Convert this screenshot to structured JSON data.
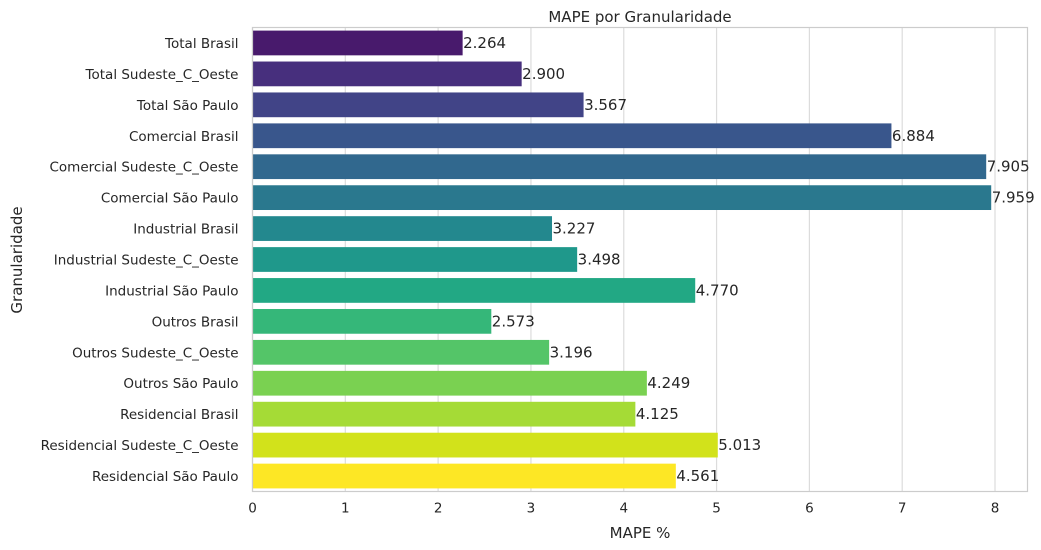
{
  "chart_data": {
    "type": "bar",
    "orientation": "horizontal",
    "title": "MAPE por Granularidade",
    "xlabel": "MAPE %",
    "ylabel": "Granularidade",
    "xlim": [
      0,
      8.35
    ],
    "xticks": [
      "0",
      "1",
      "2",
      "3",
      "4",
      "5",
      "6",
      "7",
      "8"
    ],
    "grid": true,
    "categories": [
      "Total Brasil",
      "Total Sudeste_C_Oeste",
      "Total São Paulo",
      "Comercial Brasil",
      "Comercial Sudeste_C_Oeste",
      "Comercial São Paulo",
      "Industrial Brasil",
      "Industrial Sudeste_C_Oeste",
      "Industrial São Paulo",
      "Outros Brasil",
      "Outros Sudeste_C_Oeste",
      "Outros São Paulo",
      "Residencial Brasil",
      "Residencial Sudeste_C_Oeste",
      "Residencial São Paulo"
    ],
    "values": [
      2.264,
      2.9,
      3.567,
      6.884,
      7.905,
      7.959,
      3.227,
      3.498,
      4.77,
      2.573,
      3.196,
      4.249,
      4.125,
      5.013,
      4.561
    ],
    "value_labels": [
      "2.264",
      "2.900",
      "3.567",
      "6.884",
      "7.905",
      "7.959",
      "3.227",
      "3.498",
      "4.770",
      "2.573",
      "3.196",
      "4.249",
      "4.125",
      "5.013",
      "4.561"
    ],
    "colors": [
      "#481a6c",
      "#472f7d",
      "#414487",
      "#39568c",
      "#31688e",
      "#2a788e",
      "#23888e",
      "#1f988b",
      "#22a884",
      "#35b779",
      "#54c568",
      "#7ad151",
      "#a5db36",
      "#d2e21b",
      "#fde725"
    ]
  }
}
